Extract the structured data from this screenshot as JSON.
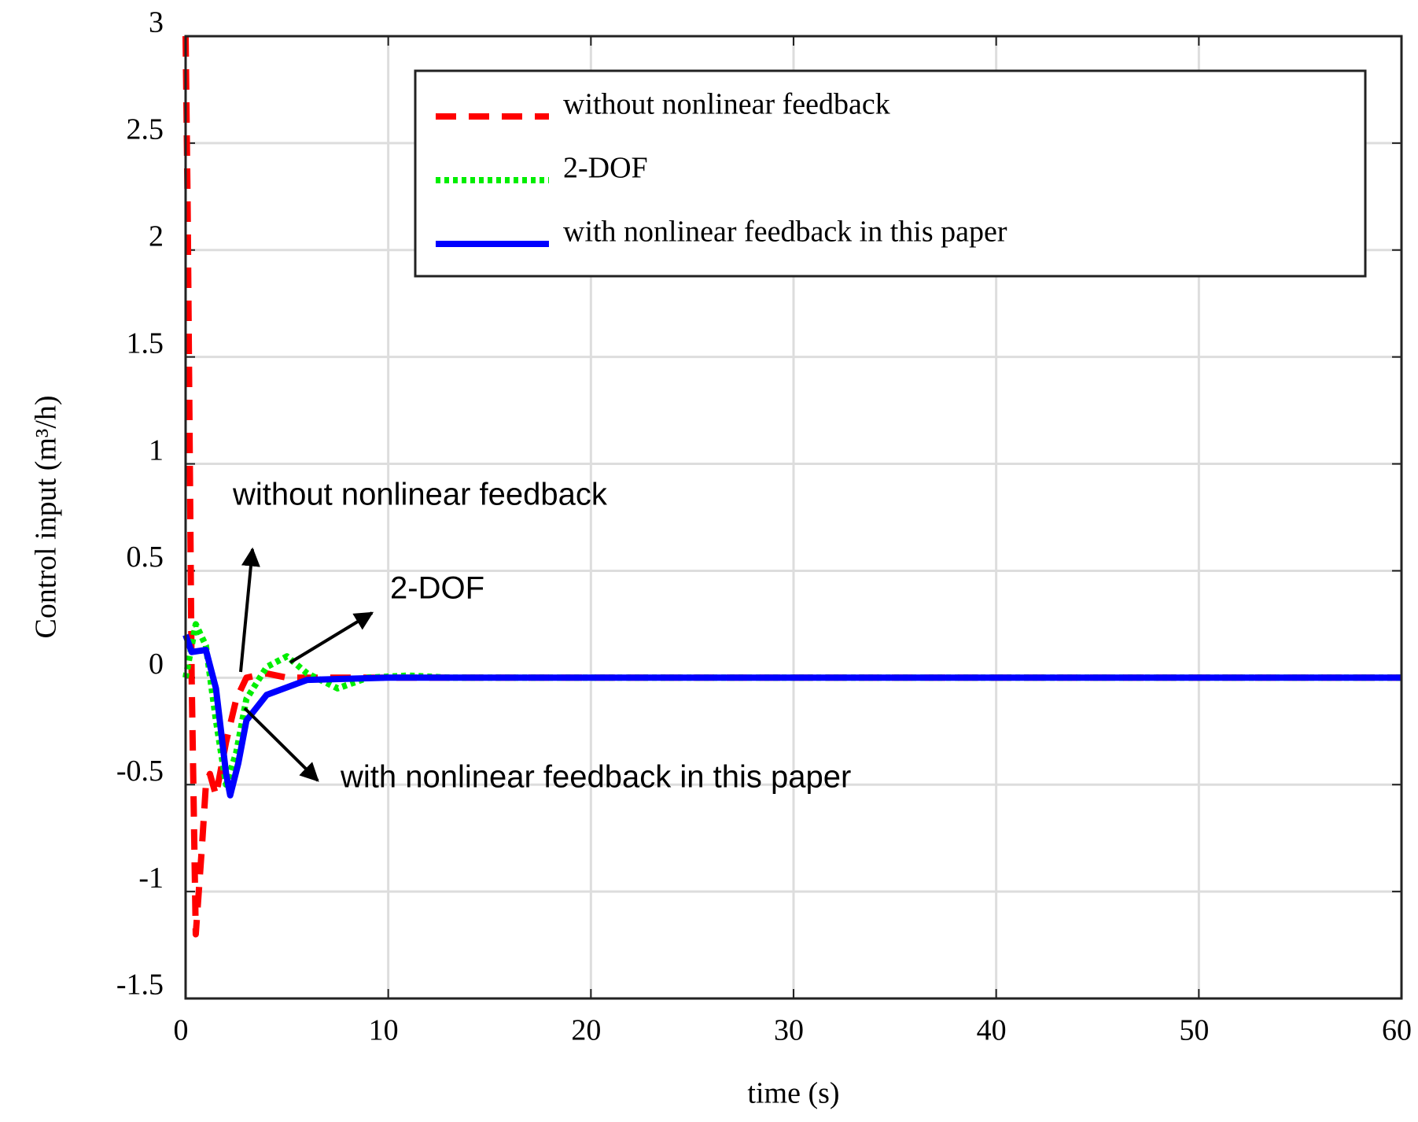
{
  "chart_data": {
    "type": "line",
    "xlabel": "time (s)",
    "ylabel": "Control input (m³/h)",
    "xlim": [
      0,
      60
    ],
    "xticks": [
      0,
      10,
      20,
      30,
      40,
      50,
      60
    ],
    "ylim": [
      -1.5,
      3
    ],
    "yticks": [
      -1.5,
      -1,
      -0.5,
      0,
      0.5,
      1,
      1.5,
      2,
      2.5,
      3
    ],
    "grid": true,
    "legend": "upper right",
    "series": [
      {
        "name": "without nonlinear feedback",
        "color": "#ff0000",
        "style": "dashed",
        "x": [
          0,
          0.1,
          0.3,
          0.5,
          0.8,
          1,
          1.2,
          1.5,
          2,
          2.5,
          3,
          4,
          5,
          6,
          60
        ],
        "values": [
          3,
          2.2,
          0,
          -1.2,
          -0.8,
          -0.5,
          -0.45,
          -0.55,
          -0.3,
          -0.1,
          0,
          0.02,
          0,
          0,
          0
        ]
      },
      {
        "name": "2-DOF",
        "color": "#00ee00",
        "style": "dotted",
        "x": [
          0,
          0.5,
          1,
          1.5,
          2,
          2.5,
          3,
          4,
          5,
          6,
          7.5,
          9,
          11,
          13,
          60
        ],
        "values": [
          0,
          0.25,
          0.15,
          -0.2,
          -0.5,
          -0.35,
          -0.1,
          0.05,
          0.1,
          0.02,
          -0.05,
          0,
          0.01,
          0,
          0
        ]
      },
      {
        "name": "with nonlinear feedback in this paper",
        "color": "#0000ff",
        "style": "solid",
        "x": [
          0,
          0.3,
          1,
          1.5,
          2,
          2.2,
          2.6,
          3,
          4,
          6,
          10,
          60
        ],
        "values": [
          0.2,
          0.12,
          0.13,
          -0.05,
          -0.45,
          -0.55,
          -0.4,
          -0.2,
          -0.08,
          -0.01,
          0,
          0
        ]
      }
    ],
    "annotations": [
      "without nonlinear feedback",
      "2-DOF",
      "with nonlinear feedback in this paper"
    ]
  }
}
